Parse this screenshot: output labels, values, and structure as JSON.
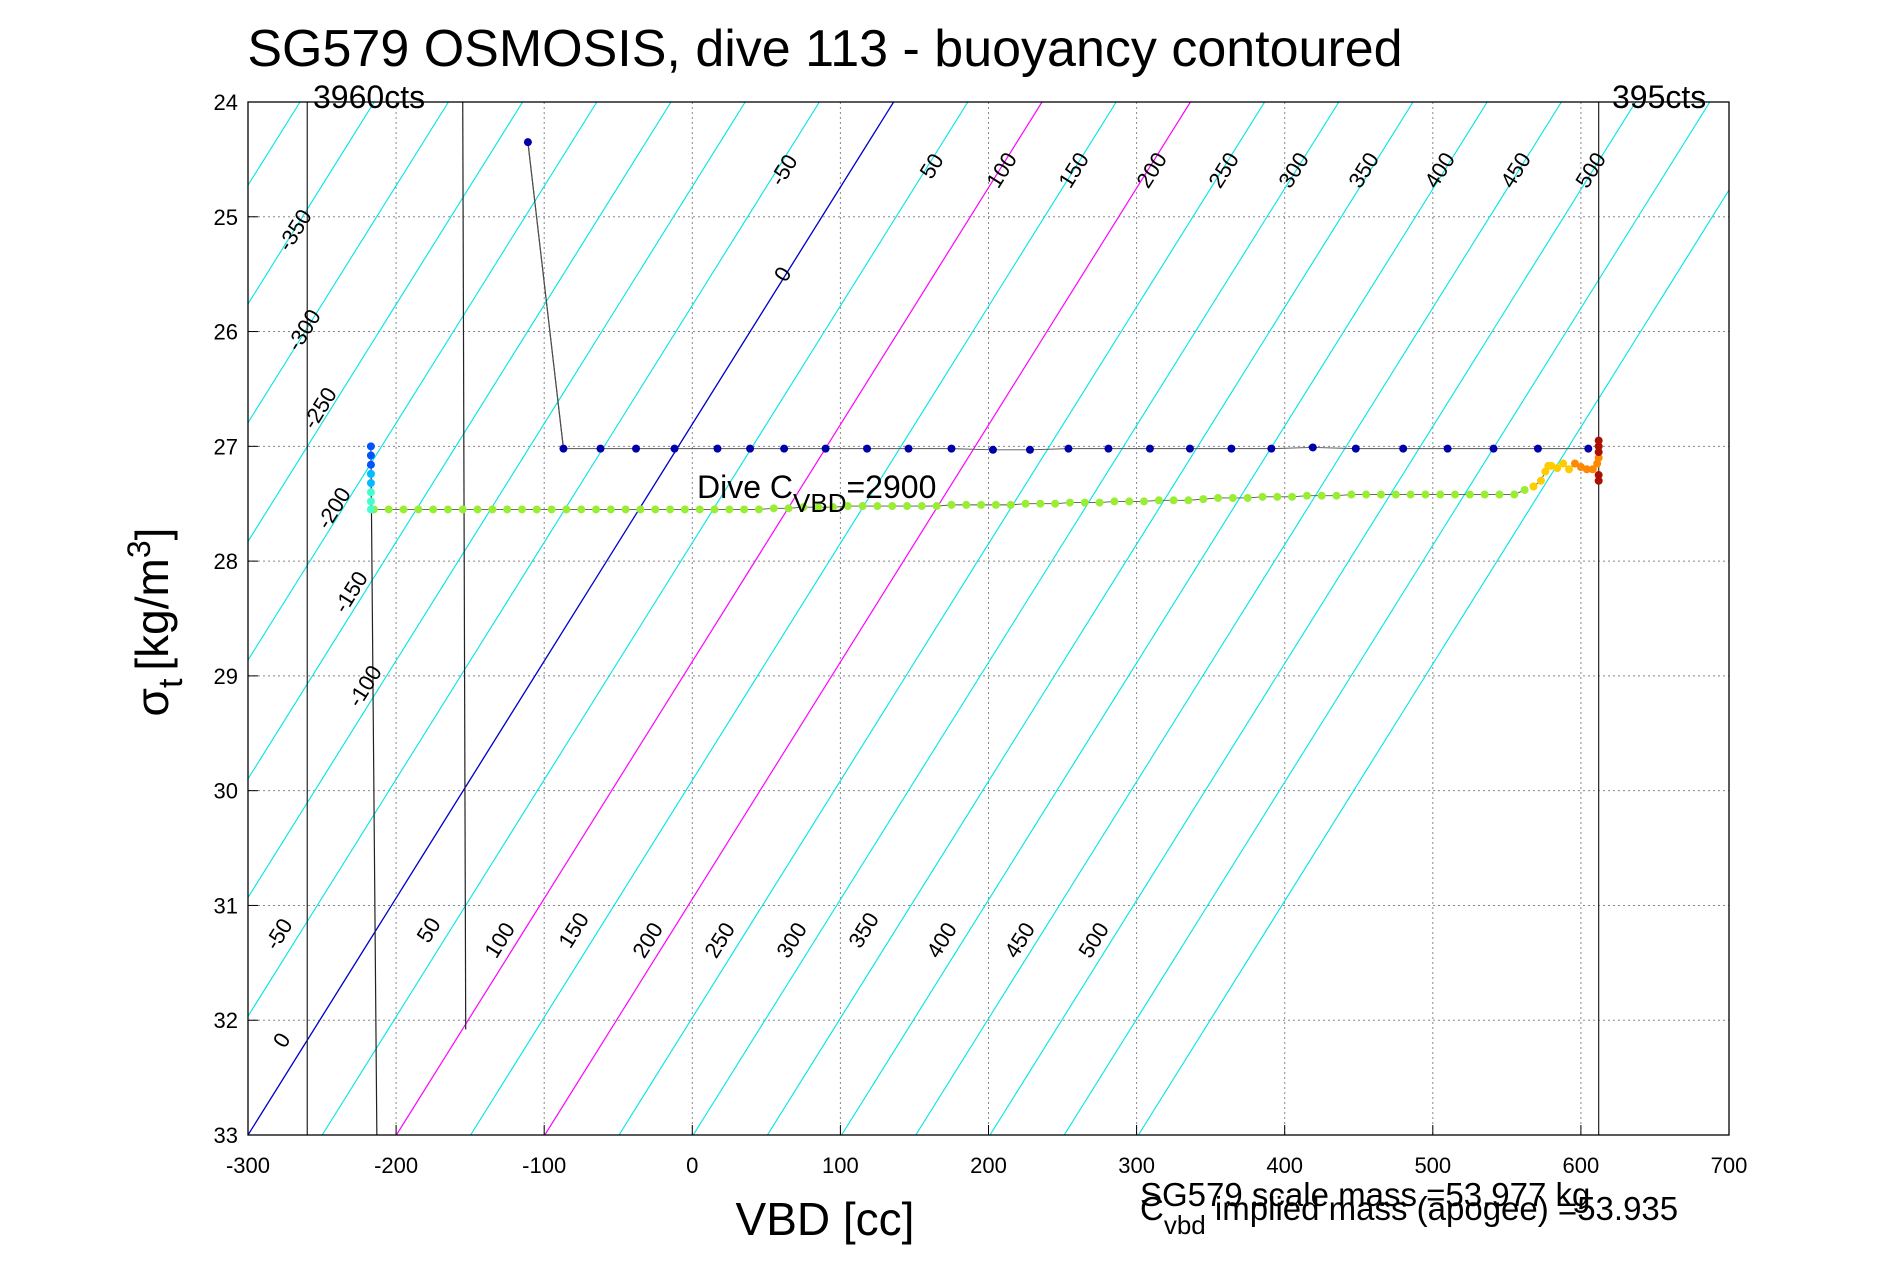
{
  "chart_data": {
    "type": "line",
    "title": "SG579 OSMOSIS, dive 113 - buoyancy contoured",
    "xlabel": "VBD [cc]",
    "ylabel": "[kg/m",
    "ylabel_symbol": "σ",
    "ylabel_sub": "t",
    "ylabel_sup": "3",
    "ylabel_close": "]",
    "xlim": [
      -300,
      700
    ],
    "ylim": [
      24,
      33
    ],
    "y_reversed": true,
    "grid": true,
    "xticks": [
      -300,
      -200,
      -100,
      0,
      100,
      200,
      300,
      400,
      500,
      600,
      700
    ],
    "yticks": [
      24,
      25,
      26,
      27,
      28,
      29,
      30,
      31,
      32,
      33
    ],
    "xtick_labels": [
      "-300",
      "-200",
      "-100",
      "0",
      "100",
      "200",
      "300",
      "400",
      "500",
      "600",
      "700"
    ],
    "ytick_labels": [
      "24",
      "25",
      "26",
      "27",
      "28",
      "29",
      "30",
      "31",
      "32",
      "33"
    ],
    "top_left_label": "3960cts",
    "top_right_label": "395cts",
    "count_lines_x": [
      -260,
      612
    ],
    "dive_cvbd_text_pre": "Dive C",
    "dive_cvbd_sub": "VBD",
    "dive_cvbd_text_post": "=2900",
    "footer_line1": "SG579 scale mass =53.977 kg",
    "footer_line2_pre": "C",
    "footer_line2_sub": "vbd",
    "footer_line2_post": " implied mass (apogee) =53.935",
    "colors": {
      "contour": "#00e5e5",
      "contour_zero": "#0000cc",
      "contour_magenta": "#ff00ff",
      "dive_dots": "#0000aa",
      "climb_dots": "#99ee33",
      "surface_dots": "#ffaa00",
      "grid": "#888888"
    },
    "contour_levels_upper": [
      "-350",
      "-300",
      "-250",
      "-200",
      "-150",
      "-100",
      "-50",
      "0",
      "50",
      "100",
      "150",
      "200",
      "250",
      "300",
      "350",
      "400",
      "450",
      "500"
    ],
    "contour_levels_lower": [
      "-50",
      "0",
      "50",
      "100",
      "150",
      "200",
      "250",
      "300",
      "350",
      "400",
      "450",
      "500"
    ],
    "series": [
      {
        "kind": "dive",
        "x": [
          -111,
          -87,
          -62,
          -38,
          -12,
          17,
          39,
          62,
          90,
          118,
          146,
          175,
          203,
          228,
          254,
          281,
          309,
          336,
          364,
          391,
          419,
          448,
          480,
          510,
          541,
          571,
          605
        ],
        "y": [
          24.35,
          27.02,
          27.02,
          27.02,
          27.02,
          27.02,
          27.02,
          27.02,
          27.02,
          27.02,
          27.02,
          27.02,
          27.03,
          27.03,
          27.02,
          27.02,
          27.02,
          27.02,
          27.02,
          27.02,
          27.01,
          27.02,
          27.02,
          27.02,
          27.02,
          27.02,
          27.02
        ]
      },
      {
        "kind": "climb",
        "x": [
          -215,
          -205,
          -195,
          -185,
          -175,
          -165,
          -155,
          -145,
          -135,
          -125,
          -115,
          -105,
          -95,
          -85,
          -75,
          -65,
          -55,
          -45,
          -35,
          -25,
          -15,
          -5,
          5,
          15,
          25,
          35,
          45,
          55,
          65,
          75,
          85,
          95,
          105,
          115,
          125,
          135,
          145,
          155,
          165,
          175,
          185,
          195,
          205,
          215,
          225,
          235,
          245,
          255,
          265,
          275,
          285,
          295,
          305,
          315,
          325,
          335,
          345,
          355,
          365,
          375,
          385,
          395,
          405,
          415,
          425,
          435,
          445,
          455,
          465,
          475,
          485,
          495,
          505,
          515,
          525,
          535,
          545,
          555,
          562
        ],
        "y": [
          27.55,
          27.55,
          27.55,
          27.55,
          27.55,
          27.55,
          27.55,
          27.55,
          27.55,
          27.55,
          27.55,
          27.55,
          27.55,
          27.55,
          27.55,
          27.55,
          27.55,
          27.55,
          27.55,
          27.55,
          27.55,
          27.55,
          27.55,
          27.55,
          27.55,
          27.55,
          27.55,
          27.54,
          27.54,
          27.53,
          27.53,
          27.53,
          27.52,
          27.52,
          27.52,
          27.52,
          27.52,
          27.52,
          27.52,
          27.51,
          27.51,
          27.51,
          27.51,
          27.51,
          27.5,
          27.5,
          27.5,
          27.49,
          27.49,
          27.49,
          27.48,
          27.48,
          27.48,
          27.47,
          27.47,
          27.47,
          27.46,
          27.45,
          27.45,
          27.45,
          27.44,
          27.44,
          27.44,
          27.43,
          27.43,
          27.43,
          27.42,
          27.42,
          27.42,
          27.42,
          27.42,
          27.42,
          27.42,
          27.42,
          27.42,
          27.42,
          27.42,
          27.42,
          27.38
        ]
      },
      {
        "kind": "surface",
        "x": [
          568,
          573,
          576,
          578,
          580,
          584,
          588,
          592,
          596,
          600,
          604,
          608,
          611,
          612,
          612,
          612,
          612,
          612,
          612
        ],
        "y": [
          27.35,
          27.3,
          27.22,
          27.17,
          27.17,
          27.19,
          27.15,
          27.2,
          27.15,
          27.18,
          27.2,
          27.2,
          27.15,
          27.1,
          27.05,
          27.0,
          26.95,
          27.25,
          27.3
        ]
      },
      {
        "kind": "climb-bottom",
        "x": [
          -217,
          -217,
          -217,
          -217,
          -217,
          -217,
          -217,
          -217
        ],
        "y": [
          27.0,
          27.08,
          27.16,
          27.24,
          27.32,
          27.4,
          27.48,
          27.55
        ]
      }
    ],
    "trace_segments": [
      {
        "x": [
          -111,
          -87
        ],
        "y": [
          24.35,
          27.02
        ]
      },
      {
        "x": [
          -155,
          -153
        ],
        "y": [
          24.0,
          32.08
        ]
      },
      {
        "x": [
          -213,
          -217
        ],
        "y": [
          33.0,
          27.0
        ]
      }
    ]
  }
}
